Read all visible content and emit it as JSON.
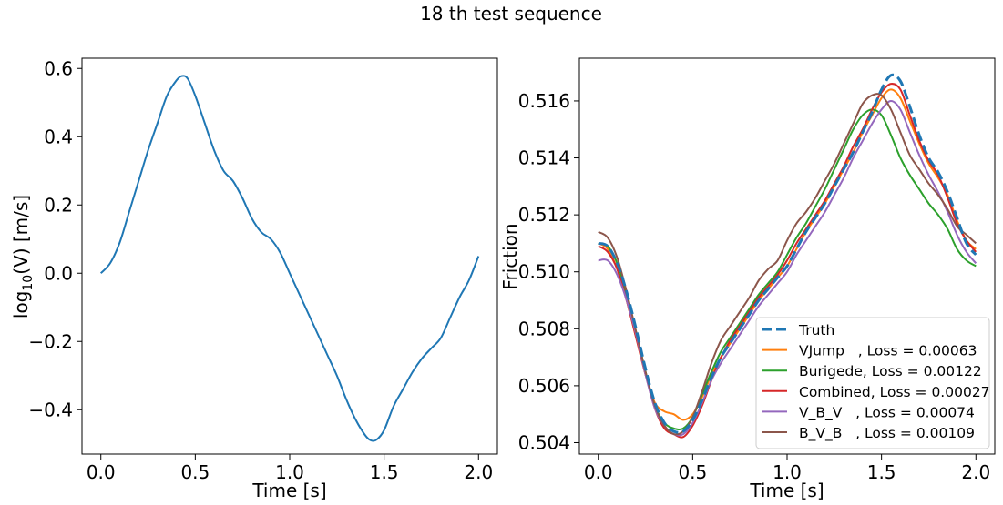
{
  "suptitle": "18 th test sequence",
  "chart_data": [
    {
      "type": "line",
      "xlabel": "Time [s]",
      "ylabel_prefix": "log",
      "ylabel_sub": "10",
      "ylabel_suffix": "(V) [m/s]",
      "xlim": [
        -0.1,
        2.1
      ],
      "ylim": [
        -0.53,
        0.63
      ],
      "x_ticks": [
        0.0,
        0.5,
        1.0,
        1.5,
        2.0
      ],
      "x_tick_labels": [
        "0.0",
        "0.5",
        "1.0",
        "1.5",
        "2.0"
      ],
      "y_ticks": [
        -0.4,
        -0.2,
        0.0,
        0.2,
        0.4,
        0.6
      ],
      "y_tick_labels": [
        "−0.4",
        "−0.2",
        "0.0",
        "0.2",
        "0.4",
        "0.6"
      ],
      "grid": false,
      "series": [
        {
          "color": "#1f77b4",
          "x": [
            0.0,
            0.05,
            0.1,
            0.15,
            0.2,
            0.25,
            0.3,
            0.35,
            0.4,
            0.43,
            0.46,
            0.5,
            0.55,
            0.6,
            0.65,
            0.7,
            0.75,
            0.8,
            0.85,
            0.9,
            0.95,
            1.0,
            1.05,
            1.1,
            1.15,
            1.2,
            1.25,
            1.3,
            1.35,
            1.4,
            1.43,
            1.46,
            1.5,
            1.55,
            1.6,
            1.65,
            1.7,
            1.75,
            1.8,
            1.85,
            1.9,
            1.95,
            2.0
          ],
          "y": [
            0.0,
            0.03,
            0.09,
            0.18,
            0.27,
            0.36,
            0.44,
            0.52,
            0.565,
            0.578,
            0.57,
            0.52,
            0.44,
            0.36,
            0.3,
            0.27,
            0.22,
            0.16,
            0.12,
            0.1,
            0.06,
            0.0,
            -0.06,
            -0.12,
            -0.18,
            -0.24,
            -0.3,
            -0.37,
            -0.43,
            -0.475,
            -0.49,
            -0.488,
            -0.46,
            -0.39,
            -0.34,
            -0.29,
            -0.25,
            -0.22,
            -0.19,
            -0.13,
            -0.07,
            -0.02,
            0.05
          ]
        }
      ]
    },
    {
      "type": "line",
      "xlabel": "Time [s]",
      "ylabel": "Friction",
      "xlim": [
        -0.1,
        2.1
      ],
      "ylim": [
        0.5036,
        0.5175
      ],
      "x_ticks": [
        0.0,
        0.5,
        1.0,
        1.5,
        2.0
      ],
      "x_tick_labels": [
        "0.0",
        "0.5",
        "1.0",
        "1.5",
        "2.0"
      ],
      "y_ticks": [
        0.504,
        0.506,
        0.508,
        0.51,
        0.512,
        0.514,
        0.516
      ],
      "y_tick_labels": [
        "0.504",
        "0.506",
        "0.508",
        "0.510",
        "0.512",
        "0.514",
        "0.516"
      ],
      "grid": false,
      "legend_position": "lower-right",
      "series": [
        {
          "name": "Truth",
          "color": "#1f77b4",
          "dashed": true,
          "x": [
            0.0,
            0.05,
            0.1,
            0.15,
            0.2,
            0.25,
            0.3,
            0.35,
            0.4,
            0.45,
            0.5,
            0.55,
            0.6,
            0.65,
            0.7,
            0.75,
            0.8,
            0.85,
            0.9,
            0.95,
            1.0,
            1.05,
            1.1,
            1.15,
            1.2,
            1.25,
            1.3,
            1.35,
            1.4,
            1.45,
            1.5,
            1.55,
            1.6,
            1.65,
            1.7,
            1.75,
            1.8,
            1.85,
            1.9,
            1.95,
            2.0
          ],
          "y": [
            0.511,
            0.5109,
            0.5103,
            0.5093,
            0.508,
            0.5066,
            0.5054,
            0.5047,
            0.5044,
            0.5044,
            0.5048,
            0.5055,
            0.5063,
            0.507,
            0.5075,
            0.508,
            0.5085,
            0.509,
            0.5094,
            0.5098,
            0.5102,
            0.5108,
            0.5114,
            0.5119,
            0.5124,
            0.513,
            0.5136,
            0.5142,
            0.5149,
            0.5156,
            0.5164,
            0.5169,
            0.5167,
            0.5158,
            0.5148,
            0.514,
            0.5135,
            0.5128,
            0.5119,
            0.511,
            0.5106
          ]
        },
        {
          "name": "VJump   , Loss = 0.00063",
          "color": "#ff7f0e",
          "dashed": false,
          "x": [
            0.0,
            0.05,
            0.1,
            0.15,
            0.2,
            0.25,
            0.3,
            0.35,
            0.4,
            0.45,
            0.5,
            0.55,
            0.6,
            0.65,
            0.7,
            0.75,
            0.8,
            0.85,
            0.9,
            0.95,
            1.0,
            1.05,
            1.1,
            1.15,
            1.2,
            1.25,
            1.3,
            1.35,
            1.4,
            1.45,
            1.5,
            1.55,
            1.6,
            1.65,
            1.7,
            1.75,
            1.8,
            1.85,
            1.9,
            1.95,
            2.0
          ],
          "y": [
            0.511,
            0.5108,
            0.5101,
            0.509,
            0.5077,
            0.5064,
            0.5054,
            0.5051,
            0.505,
            0.5048,
            0.505,
            0.5056,
            0.5064,
            0.507,
            0.5075,
            0.508,
            0.5085,
            0.509,
            0.5094,
            0.5098,
            0.5102,
            0.5108,
            0.5114,
            0.5119,
            0.5124,
            0.513,
            0.5136,
            0.5142,
            0.5149,
            0.5155,
            0.5161,
            0.5164,
            0.5161,
            0.5153,
            0.5145,
            0.5138,
            0.5133,
            0.5127,
            0.5118,
            0.5111,
            0.5108
          ]
        },
        {
          "name": "Burigede, Loss = 0.00122",
          "color": "#2ca02c",
          "dashed": false,
          "x": [
            0.0,
            0.05,
            0.1,
            0.15,
            0.2,
            0.25,
            0.3,
            0.35,
            0.4,
            0.45,
            0.5,
            0.55,
            0.6,
            0.65,
            0.7,
            0.75,
            0.8,
            0.85,
            0.9,
            0.95,
            1.0,
            1.05,
            1.1,
            1.15,
            1.2,
            1.25,
            1.3,
            1.35,
            1.4,
            1.45,
            1.5,
            1.55,
            1.6,
            1.65,
            1.7,
            1.75,
            1.8,
            1.85,
            1.9,
            1.95,
            2.0
          ],
          "y": [
            0.511,
            0.5109,
            0.5103,
            0.5092,
            0.5079,
            0.5065,
            0.5053,
            0.5047,
            0.5045,
            0.5045,
            0.5049,
            0.5057,
            0.5065,
            0.5072,
            0.5077,
            0.5082,
            0.5087,
            0.5092,
            0.5096,
            0.51,
            0.5106,
            0.5112,
            0.5117,
            0.5123,
            0.5129,
            0.5136,
            0.5143,
            0.515,
            0.5155,
            0.5157,
            0.5155,
            0.5148,
            0.514,
            0.5134,
            0.5129,
            0.5124,
            0.512,
            0.5115,
            0.5108,
            0.5104,
            0.5102
          ]
        },
        {
          "name": "Combined, Loss = 0.00027",
          "color": "#d62728",
          "dashed": false,
          "x": [
            0.0,
            0.05,
            0.1,
            0.15,
            0.2,
            0.25,
            0.3,
            0.35,
            0.4,
            0.45,
            0.5,
            0.55,
            0.6,
            0.65,
            0.7,
            0.75,
            0.8,
            0.85,
            0.9,
            0.95,
            1.0,
            1.05,
            1.1,
            1.15,
            1.2,
            1.25,
            1.3,
            1.35,
            1.4,
            1.45,
            1.5,
            1.55,
            1.6,
            1.65,
            1.7,
            1.75,
            1.8,
            1.85,
            1.9,
            1.95,
            2.0
          ],
          "y": [
            0.5109,
            0.5107,
            0.5101,
            0.509,
            0.5077,
            0.5064,
            0.5052,
            0.5045,
            0.5043,
            0.5042,
            0.5046,
            0.5053,
            0.5062,
            0.507,
            0.5076,
            0.5081,
            0.5086,
            0.5091,
            0.5095,
            0.5099,
            0.5104,
            0.511,
            0.5115,
            0.512,
            0.5125,
            0.5131,
            0.5137,
            0.5144,
            0.515,
            0.5157,
            0.5163,
            0.5166,
            0.5164,
            0.5155,
            0.5146,
            0.5139,
            0.5134,
            0.5126,
            0.5117,
            0.5111,
            0.5107
          ]
        },
        {
          "name": "V_B_V   , Loss = 0.00074",
          "color": "#9467bd",
          "dashed": false,
          "x": [
            0.0,
            0.05,
            0.1,
            0.15,
            0.2,
            0.25,
            0.3,
            0.35,
            0.4,
            0.45,
            0.5,
            0.55,
            0.6,
            0.65,
            0.7,
            0.75,
            0.8,
            0.85,
            0.9,
            0.95,
            1.0,
            1.05,
            1.1,
            1.15,
            1.2,
            1.25,
            1.3,
            1.35,
            1.4,
            1.45,
            1.5,
            1.55,
            1.6,
            1.65,
            1.7,
            1.75,
            1.8,
            1.85,
            1.9,
            1.95,
            2.0
          ],
          "y": [
            0.5104,
            0.5104,
            0.5099,
            0.509,
            0.5078,
            0.5064,
            0.5052,
            0.5046,
            0.5043,
            0.5043,
            0.5047,
            0.5054,
            0.5062,
            0.5068,
            0.5073,
            0.5078,
            0.5083,
            0.5088,
            0.5092,
            0.5096,
            0.51,
            0.5106,
            0.5111,
            0.5116,
            0.5121,
            0.5127,
            0.5133,
            0.514,
            0.5146,
            0.5152,
            0.5157,
            0.516,
            0.5157,
            0.5149,
            0.5141,
            0.5134,
            0.5128,
            0.5121,
            0.5113,
            0.5107,
            0.5103
          ]
        },
        {
          "name": "B_V_B   , Loss = 0.00109",
          "color": "#8c564b",
          "dashed": false,
          "x": [
            0.0,
            0.05,
            0.1,
            0.15,
            0.2,
            0.25,
            0.3,
            0.35,
            0.4,
            0.45,
            0.5,
            0.55,
            0.6,
            0.65,
            0.7,
            0.75,
            0.8,
            0.85,
            0.9,
            0.95,
            1.0,
            1.05,
            1.1,
            1.15,
            1.2,
            1.25,
            1.3,
            1.35,
            1.4,
            1.45,
            1.5,
            1.55,
            1.6,
            1.65,
            1.7,
            1.75,
            1.8,
            1.85,
            1.9,
            1.95,
            2.0
          ],
          "y": [
            0.5114,
            0.5112,
            0.5105,
            0.5093,
            0.5079,
            0.5065,
            0.5053,
            0.5046,
            0.5043,
            0.5044,
            0.5049,
            0.5058,
            0.5068,
            0.5076,
            0.5081,
            0.5086,
            0.5091,
            0.5097,
            0.5101,
            0.5104,
            0.5111,
            0.5117,
            0.5121,
            0.5126,
            0.5132,
            0.5138,
            0.5145,
            0.5152,
            0.5159,
            0.5162,
            0.5162,
            0.5157,
            0.5149,
            0.5141,
            0.5136,
            0.5131,
            0.5127,
            0.5122,
            0.5116,
            0.5113,
            0.511
          ]
        }
      ]
    }
  ]
}
